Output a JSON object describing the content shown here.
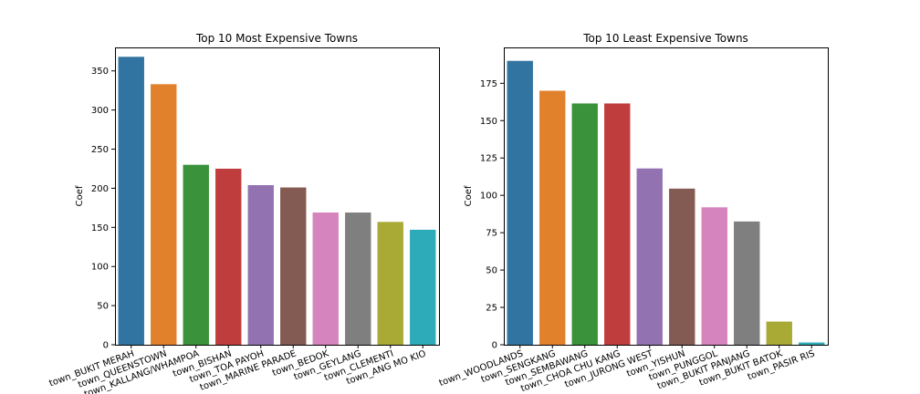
{
  "chart_data": [
    {
      "type": "bar",
      "title": "Top 10 Most Expensive Towns",
      "xlabel": "",
      "ylabel": "Coef",
      "ylim": [
        0,
        380
      ],
      "yticks": [
        0,
        50,
        100,
        150,
        200,
        250,
        300,
        350
      ],
      "grid": false,
      "categories": [
        "town_BUKIT MERAH",
        "town_QUEENSTOWN",
        "town_KALLANG/WHAMPOA",
        "town_BISHAN",
        "town_TOA PAYOH",
        "town_MARINE PARADE",
        "town_BEDOK",
        "town_GEYLANG",
        "town_CLEMENTI",
        "town_ANG MO KIO"
      ],
      "values": [
        368,
        333,
        230,
        225,
        204,
        201,
        169,
        169,
        157,
        147
      ],
      "colors": [
        "#3274a1",
        "#e1812c",
        "#3a923a",
        "#c03d3e",
        "#9372b2",
        "#845b53",
        "#d684bd",
        "#7f7f7f",
        "#a9aa35",
        "#2eabb8"
      ]
    },
    {
      "type": "bar",
      "title": "Top 10 Least Expensive Towns",
      "xlabel": "",
      "ylabel": "Coef",
      "ylim": [
        0,
        199
      ],
      "yticks": [
        0,
        25,
        50,
        75,
        100,
        125,
        150,
        175
      ],
      "grid": false,
      "categories": [
        "town_WOODLANDS",
        "town_SENGKANG",
        "town_SEMBAWANG",
        "town_CHOA CHU KANG",
        "town_JURONG WEST",
        "town_YISHUN",
        "town_PUNGGOL",
        "town_BUKIT PANJANG",
        "town_BUKIT BATOK",
        "town_PASIR RIS"
      ],
      "values": [
        190,
        170,
        161.5,
        161.5,
        118,
        104.5,
        92,
        82.5,
        15.5,
        1.5
      ],
      "colors": [
        "#3274a1",
        "#e1812c",
        "#3a923a",
        "#c03d3e",
        "#9372b2",
        "#845b53",
        "#d684bd",
        "#7f7f7f",
        "#a9aa35",
        "#2eabb8"
      ]
    }
  ]
}
